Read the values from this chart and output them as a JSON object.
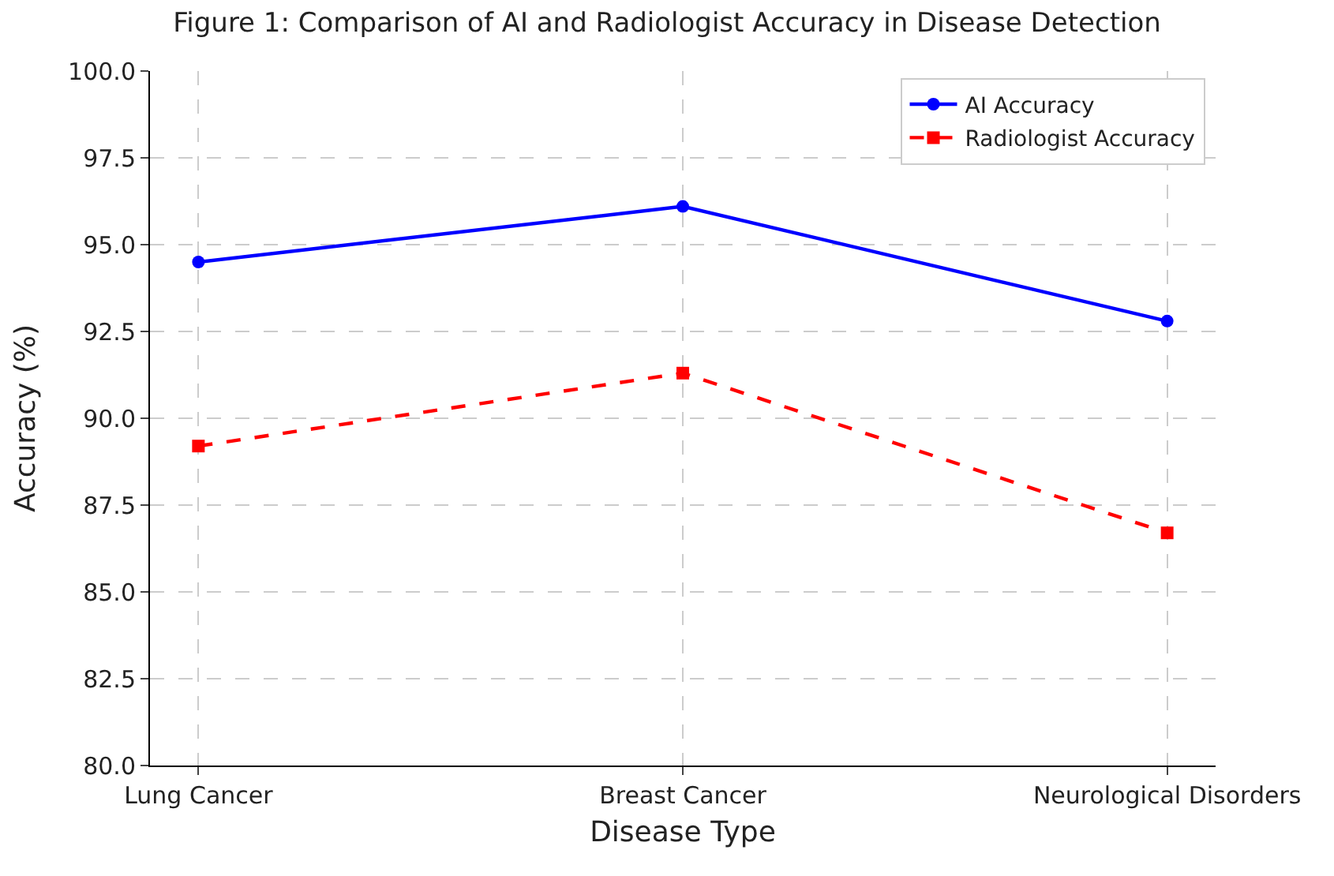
{
  "chart_data": {
    "type": "line",
    "title": "Figure 1: Comparison of AI and Radiologist Accuracy in Disease Detection",
    "xlabel": "Disease Type",
    "ylabel": "Accuracy (%)",
    "categories": [
      "Lung Cancer",
      "Breast Cancer",
      "Neurological Disorders"
    ],
    "series": [
      {
        "name": "AI Accuracy",
        "color": "#0000ff",
        "values": [
          94.5,
          96.1,
          92.8
        ],
        "marker": "circle",
        "line_style": "solid"
      },
      {
        "name": "Radiologist Accuracy",
        "color": "#ff0000",
        "values": [
          89.2,
          91.3,
          86.7
        ],
        "marker": "square",
        "line_style": "dashed"
      }
    ],
    "ylim": [
      80,
      100
    ],
    "yticks": [
      {
        "value": 80,
        "label": "80.0"
      },
      {
        "value": 82.5,
        "label": "82.5"
      },
      {
        "value": 85,
        "label": "85.0"
      },
      {
        "value": 87.5,
        "label": "87.5"
      },
      {
        "value": 90,
        "label": "90.0"
      },
      {
        "value": 92.5,
        "label": "92.5"
      },
      {
        "value": 95,
        "label": "95.0"
      },
      {
        "value": 97.5,
        "label": "97.5"
      },
      {
        "value": 100,
        "label": "100.0"
      }
    ],
    "grid": true,
    "legend": "top right"
  }
}
